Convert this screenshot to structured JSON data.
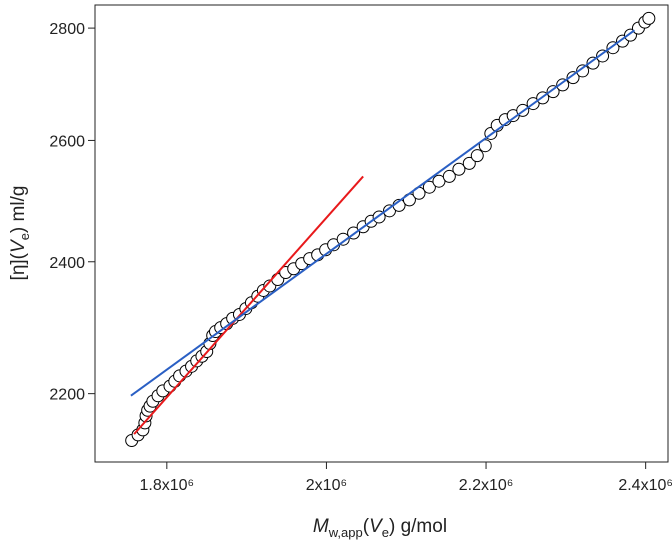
{
  "chart_data": {
    "type": "scatter",
    "xlabel": [
      "M",
      "w,app",
      "(",
      "V",
      "e",
      ") g/mol"
    ],
    "ylabel": [
      "[η](",
      "V",
      "e",
      ") ml/g"
    ],
    "xlim": [
      1710000,
      2428000
    ],
    "ylim": [
      2103,
      2843
    ],
    "ylog": true,
    "xticks": [
      {
        "value": 1800000,
        "label": "1.8x10⁶"
      },
      {
        "value": 2000000,
        "label": "2x10⁶"
      },
      {
        "value": 2200000,
        "label": "2.2x10⁶"
      },
      {
        "value": 2400000,
        "label": "2.4x10⁶"
      }
    ],
    "yticks": [
      2200,
      2400,
      2600,
      2800
    ],
    "series": [
      {
        "type": "scatter",
        "color": "#000000",
        "x": [
          1756000,
          1764000,
          1770000,
          1772500,
          1774000,
          1776000,
          1779000,
          1782500,
          1789000,
          1795000,
          1804000,
          1810000,
          1816000,
          1824000,
          1831000,
          1837500,
          1844000,
          1850000,
          1854000,
          1857500,
          1861000,
          1867500,
          1875000,
          1882500,
          1891000,
          1899000,
          1906000,
          1914000,
          1921000,
          1929000,
          1939000,
          1949000,
          1959000,
          1969000,
          1979000,
          1989000,
          1999000,
          2009000,
          2021000,
          2034000,
          2046000,
          2056000,
          2066000,
          2079000,
          2091000,
          2104000,
          2116000,
          2129000,
          2141000,
          2154000,
          2166000,
          2179000,
          2189000,
          2199000,
          2206000,
          2214000,
          2224000,
          2234000,
          2246000,
          2259000,
          2271000,
          2284000,
          2296000,
          2309000,
          2321000,
          2334000,
          2346000,
          2359000,
          2371000,
          2381000,
          2391000,
          2399000,
          2404000
        ],
        "values": [
          2133,
          2141,
          2148,
          2158,
          2168,
          2176,
          2182,
          2189,
          2197,
          2204,
          2211,
          2218,
          2226,
          2233,
          2240,
          2248,
          2255,
          2262,
          2274,
          2286,
          2292,
          2298,
          2304,
          2312,
          2318,
          2327,
          2336,
          2346,
          2355,
          2362,
          2372,
          2383,
          2389,
          2397,
          2405,
          2411,
          2419,
          2427,
          2436,
          2446,
          2456,
          2465,
          2472,
          2482,
          2491,
          2500,
          2511,
          2521,
          2531,
          2539,
          2551,
          2561,
          2574,
          2591,
          2612,
          2626,
          2636,
          2643,
          2652,
          2664,
          2674,
          2685,
          2697,
          2710,
          2722,
          2736,
          2749,
          2764,
          2776,
          2787,
          2800,
          2811,
          2818
        ]
      },
      {
        "type": "line",
        "color": "#e8191b",
        "x": [
          1759000,
          2046000
        ],
        "values": [
          2142,
          2539
        ]
      },
      {
        "type": "line",
        "color": "#2a5fc4",
        "x": [
          1755000,
          2386000
        ],
        "values": [
          2197,
          2796
        ]
      }
    ]
  }
}
